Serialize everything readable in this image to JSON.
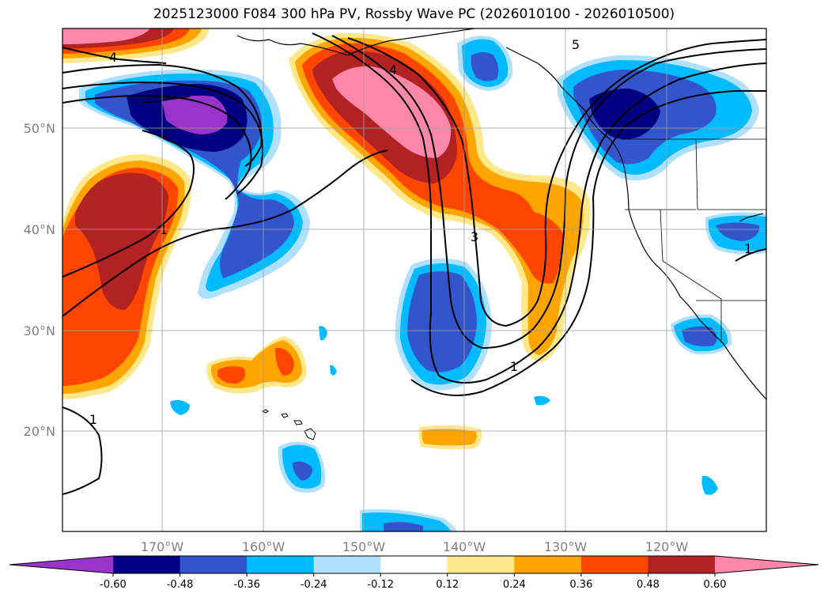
{
  "title": "2025123000 F084 300 hPa PV, Rossby Wave PC (2026010100 - 2026010500)",
  "lat_labels": [
    "50°N",
    "40°N",
    "30°N",
    "20°N"
  ],
  "lon_labels": [
    "170°W",
    "160°W",
    "150°W",
    "140°W",
    "130°W",
    "120°W"
  ],
  "colorbar": {
    "labels": [
      "-0.60",
      "-0.48",
      "-0.36",
      "-0.24",
      "-0.12",
      "0.12",
      "0.24",
      "0.36",
      "0.48",
      "0.60"
    ],
    "colors": [
      "#9933cc",
      "#000080",
      "#3355cc",
      "#00bbff",
      "#b0e0ff",
      "#ffffff",
      "#ffe88a",
      "#ffa500",
      "#ff4500",
      "#b22222",
      "#ff88aa"
    ]
  },
  "contour_labels": [
    "4",
    "4",
    "5",
    "1",
    "3",
    "1",
    "1",
    "1"
  ]
}
